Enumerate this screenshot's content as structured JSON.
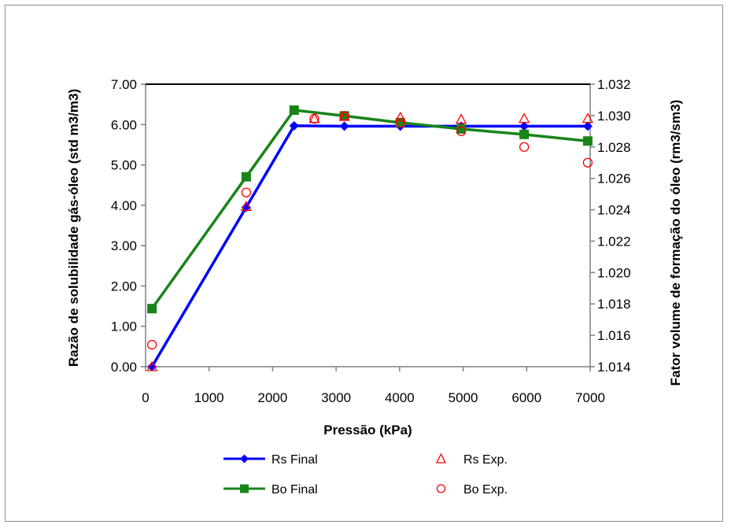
{
  "chart_data": {
    "type": "line",
    "title": "",
    "xlabel": "Pressão (kPa)",
    "ylabel_left": "Razão de solubilidade gás-óleo (std  m3/m3)",
    "ylabel_right": "Fator volume de formação do óleo (rm3/sm3)",
    "xlim": [
      0,
      7000
    ],
    "ylim_left": [
      0,
      7
    ],
    "ylim_right": [
      1.014,
      1.032
    ],
    "x_ticks": [
      "0",
      "1000",
      "2000",
      "3000",
      "4000",
      "5000",
      "6000",
      "7000"
    ],
    "y_left_ticks": [
      "0.00",
      "1.00",
      "2.00",
      "3.00",
      "4.00",
      "5.00",
      "6.00",
      "7.00"
    ],
    "y_right_ticks": [
      "1.014",
      "1.016",
      "1.018",
      "1.020",
      "1.022",
      "1.024",
      "1.026",
      "1.028",
      "1.030",
      "1.032"
    ],
    "grid": false,
    "legend_position": "bottom",
    "series": [
      {
        "name": "Rs Final",
        "axis": "left",
        "style": "line-diamond",
        "color": "#0000ff",
        "x": [
          101,
          1585,
          2339,
          3130,
          4011,
          4969,
          5961,
          6962
        ],
        "y": [
          0.0,
          3.95,
          5.97,
          5.96,
          5.96,
          5.96,
          5.96,
          5.96
        ]
      },
      {
        "name": "Bo Final",
        "axis": "left",
        "style": "line-square",
        "color": "#188418",
        "x": [
          101,
          1585,
          2339,
          3130,
          4011,
          4969,
          5961,
          6962
        ],
        "y": [
          1.0177,
          1.0261,
          1.03035,
          1.02998,
          1.02955,
          1.02915,
          1.0288,
          1.02838
        ]
      },
      {
        "name": "Rs Exp.",
        "axis": "left",
        "style": "open-triangle",
        "color": "#ff0000",
        "x": [
          101,
          1585,
          2657,
          3130,
          4011,
          4969,
          5961,
          6962
        ],
        "y": [
          0.0,
          3.97,
          6.15,
          6.2,
          6.18,
          6.13,
          6.15,
          6.15
        ]
      },
      {
        "name": "Bo Exp.",
        "axis": "right",
        "style": "open-circle",
        "color": "#ff0000",
        "x": [
          101,
          1585,
          2657,
          3130,
          4011,
          4969,
          5961,
          6962
        ],
        "y": [
          1.0154,
          1.0251,
          1.0298,
          1.02998,
          1.02955,
          1.029,
          1.028,
          1.027
        ]
      }
    ]
  }
}
